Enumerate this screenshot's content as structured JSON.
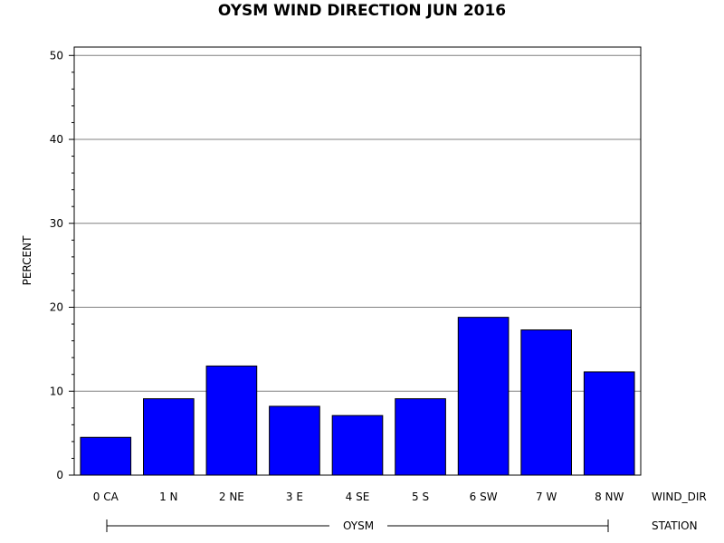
{
  "chart_data": {
    "type": "bar",
    "title": "OYSM WIND DIRECTION JUN 2016",
    "ylabel": "PERCENT",
    "xlabel": "WIND_DIR",
    "group_axis_label": "STATION",
    "group_label": "OYSM",
    "categories": [
      "0 CA",
      "1 N",
      "2 NE",
      "3 E",
      "4 SE",
      "5 S",
      "6 SW",
      "7 W",
      "8 NW"
    ],
    "values": [
      4.5,
      9.1,
      13.0,
      8.2,
      7.1,
      9.1,
      18.8,
      17.3,
      12.3
    ],
    "ylim": [
      0,
      51
    ],
    "yticks": [
      "0",
      "10",
      "20",
      "30",
      "40",
      "50"
    ],
    "grid": true,
    "bar_color": "#0000ff"
  }
}
